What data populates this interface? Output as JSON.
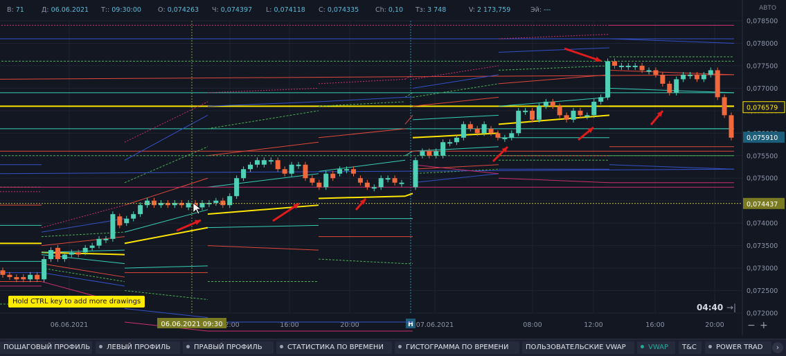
{
  "info_bar": [
    {
      "label": "В:",
      "value": "71"
    },
    {
      "label": "Д:",
      "value": "06.06.2021"
    },
    {
      "label": "Т::",
      "value": "09:30:00"
    },
    {
      "label": "О:",
      "value": "0,074263"
    },
    {
      "label": "Ч:",
      "value": "0,074397"
    },
    {
      "label": "L:",
      "value": "0,074118"
    },
    {
      "label": "С:",
      "value": "0,074335"
    },
    {
      "label": "Ch:",
      "value": "0,10"
    },
    {
      "label": "Тз:",
      "value": "3 748"
    },
    {
      "label": "V:",
      "value": "2 173,759"
    },
    {
      "label": "Эй:",
      "value": "---"
    }
  ],
  "scale_mode": "АВТО",
  "hint": "Hold CTRL key to add more drawings",
  "timer": "04:40",
  "zoom": {
    "minus": "−",
    "plus": "+"
  },
  "colors": {
    "bg": "#131722",
    "up": "#4fd1b7",
    "down": "#f0683c",
    "vwap": "#ffe600",
    "grid": "#1e2332",
    "arrow": "#e01b1b"
  },
  "icons": {
    "timer": "arrow-right-bar-icon",
    "nav": "chevron-right-icon"
  },
  "bottom_tabs": [
    {
      "label": "ПОШАГОВЫЙ ПРОФИЛЬ",
      "dot": false,
      "active": false
    },
    {
      "label": "ЛЕВЫЙ ПРОФИЛЬ",
      "dot": true,
      "active": false
    },
    {
      "label": "ПРАВЫЙ ПРОФИЛЬ",
      "dot": true,
      "active": false
    },
    {
      "label": "СТАТИСТИКА ПО ВРЕМЕНИ",
      "dot": true,
      "active": false
    },
    {
      "label": "ГИСТОГРАММА ПО ВРЕМЕНИ",
      "dot": true,
      "active": false
    },
    {
      "label": "ПОЛЬЗОВАТЕЛЬСКИЕ VWAP",
      "dot": false,
      "active": false
    },
    {
      "label": "VWAP",
      "dot": true,
      "active": true
    },
    {
      "label": "T&C",
      "dot": false,
      "active": false
    },
    {
      "label": "POWER TRAD",
      "dot": true,
      "active": false
    }
  ],
  "nav_label": "›",
  "chart_data": {
    "type": "candlestick",
    "y_ticks": [
      "0,078500",
      "0,078000",
      "0,077500",
      "0,077000",
      "0,076500",
      "0,076000",
      "0,075500",
      "0,075000",
      "0,074500",
      "0,074000",
      "0,073500",
      "0,073000",
      "0,072500",
      "0,072000"
    ],
    "ylim": [
      0.072,
      0.0785
    ],
    "x_ticks": [
      "06.06.2021",
      "12:00",
      "16:00",
      "20:00",
      "07.06.2021",
      "08:00",
      "12:00",
      "16:00",
      "20:00"
    ],
    "day_marker": "Н",
    "crosshair": {
      "time_label": "06.06.2021 09:30",
      "price_label": "0,074437",
      "price": 0.074437
    },
    "price_labels": [
      {
        "text": "0,076579",
        "value": 0.076579,
        "kind": "vwap"
      },
      {
        "text": "0,075910",
        "value": 0.07591,
        "kind": "last"
      }
    ],
    "candles": [
      [
        0.07295,
        0.07285
      ],
      [
        0.07285,
        0.0728
      ],
      [
        0.0728,
        0.07275
      ],
      [
        0.0728,
        0.07275
      ],
      [
        0.07275,
        0.07285
      ],
      [
        0.07285,
        0.07275
      ],
      [
        0.07275,
        0.0732
      ],
      [
        0.0732,
        0.0734
      ],
      [
        0.07345,
        0.0732
      ],
      [
        0.0732,
        0.0733
      ],
      [
        0.0733,
        0.07335
      ],
      [
        0.07335,
        0.0733
      ],
      [
        0.07335,
        0.07345
      ],
      [
        0.07345,
        0.0735
      ],
      [
        0.0735,
        0.07365
      ],
      [
        0.07365,
        0.07365
      ],
      [
        0.07365,
        0.0742
      ],
      [
        0.07415,
        0.07395
      ],
      [
        0.074,
        0.0741
      ],
      [
        0.0741,
        0.0742
      ],
      [
        0.0742,
        0.0744
      ],
      [
        0.0744,
        0.0745
      ],
      [
        0.0745,
        0.0744
      ],
      [
        0.0744,
        0.07445
      ],
      [
        0.07445,
        0.0744
      ],
      [
        0.0744,
        0.07445
      ],
      [
        0.07445,
        0.0744
      ],
      [
        0.07435,
        0.07445
      ],
      [
        0.07445,
        0.07435
      ],
      [
        0.07435,
        0.07445
      ],
      [
        0.07445,
        0.07445
      ],
      [
        0.07445,
        0.0745
      ],
      [
        0.0745,
        0.0744
      ],
      [
        0.0744,
        0.0746
      ],
      [
        0.0746,
        0.075
      ],
      [
        0.075,
        0.0752
      ],
      [
        0.0752,
        0.0753
      ],
      [
        0.0753,
        0.0754
      ],
      [
        0.0753,
        0.0754
      ],
      [
        0.0754,
        0.0754
      ],
      [
        0.0754,
        0.0752
      ],
      [
        0.0752,
        0.0751
      ],
      [
        0.0751,
        0.0753
      ],
      [
        0.0753,
        0.0753
      ],
      [
        0.0753,
        0.075
      ],
      [
        0.075,
        0.0749
      ],
      [
        0.0749,
        0.0748
      ],
      [
        0.0748,
        0.0751
      ],
      [
        0.0751,
        0.075
      ],
      [
        0.0751,
        0.0752
      ],
      [
        0.0752,
        0.0752
      ],
      [
        0.0752,
        0.0751
      ],
      [
        0.075,
        0.0749
      ],
      [
        0.0749,
        0.0748
      ],
      [
        0.0748,
        0.0748
      ],
      [
        0.0748,
        0.075
      ],
      [
        0.075,
        0.075
      ],
      [
        0.075,
        0.0749
      ],
      [
        0.0749,
        0.0749
      ],
      [
        0.0748,
        0.0754
      ],
      [
        0.0755,
        0.0756
      ],
      [
        0.0756,
        0.0755
      ],
      [
        0.0755,
        0.0756
      ],
      [
        0.0755,
        0.0758
      ],
      [
        0.0758,
        0.0758
      ],
      [
        0.0758,
        0.0759
      ],
      [
        0.0759,
        0.0762
      ],
      [
        0.0762,
        0.0761
      ],
      [
        0.0761,
        0.076
      ],
      [
        0.076,
        0.0762
      ],
      [
        0.0761,
        0.076
      ],
      [
        0.076,
        0.0759
      ],
      [
        0.0759,
        0.0759
      ],
      [
        0.0759,
        0.076
      ],
      [
        0.076,
        0.0765
      ],
      [
        0.0765,
        0.0765
      ],
      [
        0.0765,
        0.0763
      ],
      [
        0.0763,
        0.0766
      ],
      [
        0.0766,
        0.0767
      ],
      [
        0.0767,
        0.0766
      ],
      [
        0.0766,
        0.0764
      ],
      [
        0.0764,
        0.0763
      ],
      [
        0.0763,
        0.0765
      ],
      [
        0.0765,
        0.0764
      ],
      [
        0.0764,
        0.0764
      ],
      [
        0.0764,
        0.0767
      ],
      [
        0.0767,
        0.0768
      ],
      [
        0.0768,
        0.0776
      ],
      [
        0.0776,
        0.0775
      ],
      [
        0.0775,
        0.0775
      ],
      [
        0.0775,
        0.0775
      ],
      [
        0.0775,
        0.0775
      ],
      [
        0.0775,
        0.0774
      ],
      [
        0.0774,
        0.0774
      ],
      [
        0.0774,
        0.0773
      ],
      [
        0.0773,
        0.0771
      ],
      [
        0.0771,
        0.0769
      ],
      [
        0.0769,
        0.0772
      ],
      [
        0.0772,
        0.0773
      ],
      [
        0.0773,
        0.0773
      ],
      [
        0.0773,
        0.0772
      ],
      [
        0.0772,
        0.0773
      ],
      [
        0.0773,
        0.0774
      ],
      [
        0.0774,
        0.0768
      ],
      [
        0.0768,
        0.0764
      ],
      [
        0.0764,
        0.0759
      ]
    ],
    "bands": [
      {
        "name": "vwap",
        "color": "#ffe600",
        "width": 2,
        "dash": "",
        "pts": [
          [
            0.07355,
            0.07355
          ],
          [
            0.07335,
            0.0733
          ],
          [
            0.07355,
            0.0739
          ],
          [
            0.0742,
            0.0744
          ],
          [
            0.07455,
            0.0746
          ],
          [
            0.0746,
            0.07466
          ],
          [
            0.0759,
            0.076
          ],
          [
            0.0762,
            0.0764
          ],
          [
            0.0766,
            0.0766
          ],
          [
            0.0766,
            0.0766
          ]
        ]
      },
      {
        "name": "inner-up",
        "color": "#38d0b8",
        "width": 1,
        "dash": "",
        "pts": [
          [
            0.07395,
            0.07395
          ],
          [
            0.07335,
            0.0734
          ],
          [
            0.0738,
            0.0743
          ],
          [
            0.0748,
            0.0751
          ],
          [
            0.07515,
            0.0754
          ],
          [
            0.0755,
            0.0756
          ],
          [
            0.0763,
            0.0764
          ],
          [
            0.0766,
            0.0768
          ],
          [
            0.077,
            0.0769
          ],
          [
            0.0769,
            0.0769
          ]
        ]
      },
      {
        "name": "inner-down",
        "color": "#38d0b8",
        "width": 1,
        "dash": "",
        "pts": [
          [
            0.07315,
            0.07315
          ],
          [
            0.0733,
            0.0731
          ],
          [
            0.073,
            0.07305
          ],
          [
            0.0739,
            0.07395
          ],
          [
            0.0741,
            0.0741
          ],
          [
            0.0741,
            0.0741
          ],
          [
            0.0756,
            0.0757
          ],
          [
            0.0759,
            0.0759
          ],
          [
            0.0761,
            0.0761
          ],
          [
            0.0761,
            0.0761
          ]
        ]
      },
      {
        "name": "mid-up",
        "color": "#e0483c",
        "width": 1,
        "dash": "",
        "pts": [
          [
            0.0744,
            0.0744
          ],
          [
            0.0735,
            0.0737
          ],
          [
            0.0744,
            0.075
          ],
          [
            0.0755,
            0.0758
          ],
          [
            0.0759,
            0.0761
          ],
          [
            0.0762,
            0.0764
          ],
          [
            0.0766,
            0.0768
          ],
          [
            0.0771,
            0.0773
          ],
          [
            0.0774,
            0.0773
          ],
          [
            0.0773,
            0.0772
          ]
        ]
      },
      {
        "name": "mid-down",
        "color": "#e0483c",
        "width": 1,
        "dash": "",
        "pts": [
          [
            0.0727,
            0.0727
          ],
          [
            0.0731,
            0.0728
          ],
          [
            0.0729,
            0.0729
          ],
          [
            0.0735,
            0.0734
          ],
          [
            0.0737,
            0.0737
          ],
          [
            0.0737,
            0.0737
          ],
          [
            0.0752,
            0.0753
          ],
          [
            0.0755,
            0.0755
          ],
          [
            0.0757,
            0.0757
          ],
          [
            0.0756,
            0.0756
          ]
        ]
      },
      {
        "name": "outer-up",
        "color": "#4cae55",
        "width": 1,
        "dash": "3,2",
        "pts": [
          [
            0.0748,
            0.0748
          ],
          [
            0.0737,
            0.0738
          ],
          [
            0.0749,
            0.0757
          ],
          [
            0.0761,
            0.0765
          ],
          [
            0.0766,
            0.0767
          ],
          [
            0.0768,
            0.0769
          ],
          [
            0.0768,
            0.0771
          ],
          [
            0.0774,
            0.0775
          ],
          [
            0.0777,
            0.0777
          ],
          [
            0.0776,
            0.0776
          ]
        ]
      },
      {
        "name": "outer-down",
        "color": "#4cae55",
        "width": 1,
        "dash": "3,2",
        "pts": [
          [
            0.0722,
            0.0722
          ],
          [
            0.073,
            0.0727
          ],
          [
            0.0725,
            0.0723
          ],
          [
            0.0727,
            0.0727
          ],
          [
            0.0732,
            0.0731
          ],
          [
            0.0731,
            0.0731
          ],
          [
            0.0751,
            0.0752
          ],
          [
            0.0754,
            0.0754
          ],
          [
            0.0755,
            0.0755
          ],
          [
            0.0755,
            0.0755
          ]
        ]
      },
      {
        "name": "far-up",
        "color": "#3550c8",
        "width": 1,
        "dash": "",
        "pts": [
          [
            0.0753,
            0.0753
          ],
          [
            0.0738,
            0.0741
          ],
          [
            0.0754,
            0.0764
          ],
          [
            0.0766,
            0.0767
          ],
          [
            0.0767,
            0.0768
          ],
          [
            0.0768,
            0.0768
          ],
          [
            0.077,
            0.0773
          ],
          [
            0.0778,
            0.0779
          ],
          [
            0.0781,
            0.078
          ],
          [
            0.0781,
            0.0781
          ]
        ]
      },
      {
        "name": "far-down",
        "color": "#3550c8",
        "width": 1,
        "dash": "",
        "pts": [
          [
            0.0729,
            0.0729
          ],
          [
            0.0729,
            0.0726
          ],
          [
            0.0721,
            0.0719
          ],
          [
            0.0718,
            0.0718
          ],
          [
            0.0718,
            0.0718
          ],
          [
            0.0718,
            0.0718
          ],
          [
            0.0749,
            0.0751
          ],
          [
            0.0752,
            0.0752
          ],
          [
            0.0753,
            0.0752
          ],
          [
            0.0752,
            0.0751
          ]
        ]
      },
      {
        "name": "extreme-up",
        "color": "#cc2f6e",
        "width": 1,
        "dash": "2,2",
        "pts": [
          [
            0.0747,
            0.0747
          ],
          [
            0.0739,
            0.0744
          ],
          [
            0.0758,
            0.0767
          ],
          [
            0.0769,
            0.077
          ],
          [
            0.0771,
            0.0772
          ],
          [
            0.0772,
            0.0773
          ],
          [
            0.0772,
            0.0775
          ],
          [
            0.0781,
            0.0782
          ],
          [
            0.0784,
            0.0784
          ],
          [
            0.0784,
            0.0784
          ]
        ]
      },
      {
        "name": "extreme-down",
        "color": "#cc2f6e",
        "width": 1,
        "dash": "",
        "pts": [
          [
            0.0726,
            0.0726
          ],
          [
            0.0727,
            0.0722
          ],
          [
            0.0718,
            0.0716
          ],
          [
            0.0716,
            0.0716
          ],
          [
            0.0716,
            0.0716
          ],
          [
            0.0716,
            0.0716
          ],
          [
            0.0753,
            0.0751
          ],
          [
            0.075,
            0.0749
          ],
          [
            0.0749,
            0.0749
          ],
          [
            0.0748,
            0.0748
          ]
        ]
      }
    ]
  }
}
